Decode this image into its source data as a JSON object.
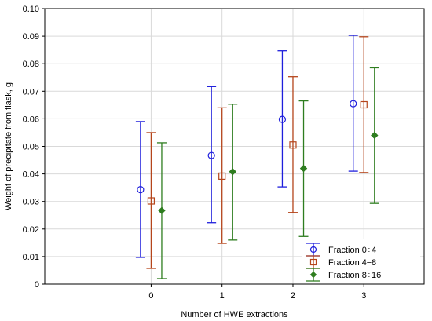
{
  "chart_data": {
    "type": "scatter",
    "subtype": "error-bar",
    "xlabel": "Number of HWE extractions",
    "ylabel": "Weight of precipitate from flask, g",
    "x_categories": [
      "0",
      "1",
      "2",
      "3"
    ],
    "ylim": [
      0,
      0.1
    ],
    "y_ticks": [
      "0",
      "0.01",
      "0.02",
      "0.03",
      "0.04",
      "0.05",
      "0.06",
      "0.07",
      "0.08",
      "0.09",
      "0.10"
    ],
    "grid": true,
    "legend_position": "bottom-right",
    "series": [
      {
        "name": "Fraction 0÷4",
        "color": "#1f1fdc",
        "marker": "circle",
        "values": [
          {
            "x": "0",
            "mean": 0.0343,
            "lower": 0.0097,
            "upper": 0.059
          },
          {
            "x": "1",
            "mean": 0.0467,
            "lower": 0.0223,
            "upper": 0.0717
          },
          {
            "x": "2",
            "mean": 0.0598,
            "lower": 0.0353,
            "upper": 0.0847
          },
          {
            "x": "3",
            "mean": 0.0655,
            "lower": 0.041,
            "upper": 0.0903
          }
        ]
      },
      {
        "name": "Fraction 4÷8",
        "color": "#b5451b",
        "marker": "square",
        "values": [
          {
            "x": "0",
            "mean": 0.0302,
            "lower": 0.0057,
            "upper": 0.055
          },
          {
            "x": "1",
            "mean": 0.0392,
            "lower": 0.0148,
            "upper": 0.064
          },
          {
            "x": "2",
            "mean": 0.0505,
            "lower": 0.026,
            "upper": 0.0753
          },
          {
            "x": "3",
            "mean": 0.0651,
            "lower": 0.0405,
            "upper": 0.0898
          }
        ]
      },
      {
        "name": "Fraction 8÷16",
        "color": "#2e7d1f",
        "marker": "diamond",
        "values": [
          {
            "x": "0",
            "mean": 0.0267,
            "lower": 0.002,
            "upper": 0.0513
          },
          {
            "x": "1",
            "mean": 0.0408,
            "lower": 0.016,
            "upper": 0.0653
          },
          {
            "x": "2",
            "mean": 0.042,
            "lower": 0.0173,
            "upper": 0.0665
          },
          {
            "x": "3",
            "mean": 0.054,
            "lower": 0.0293,
            "upper": 0.0785
          }
        ]
      }
    ]
  }
}
